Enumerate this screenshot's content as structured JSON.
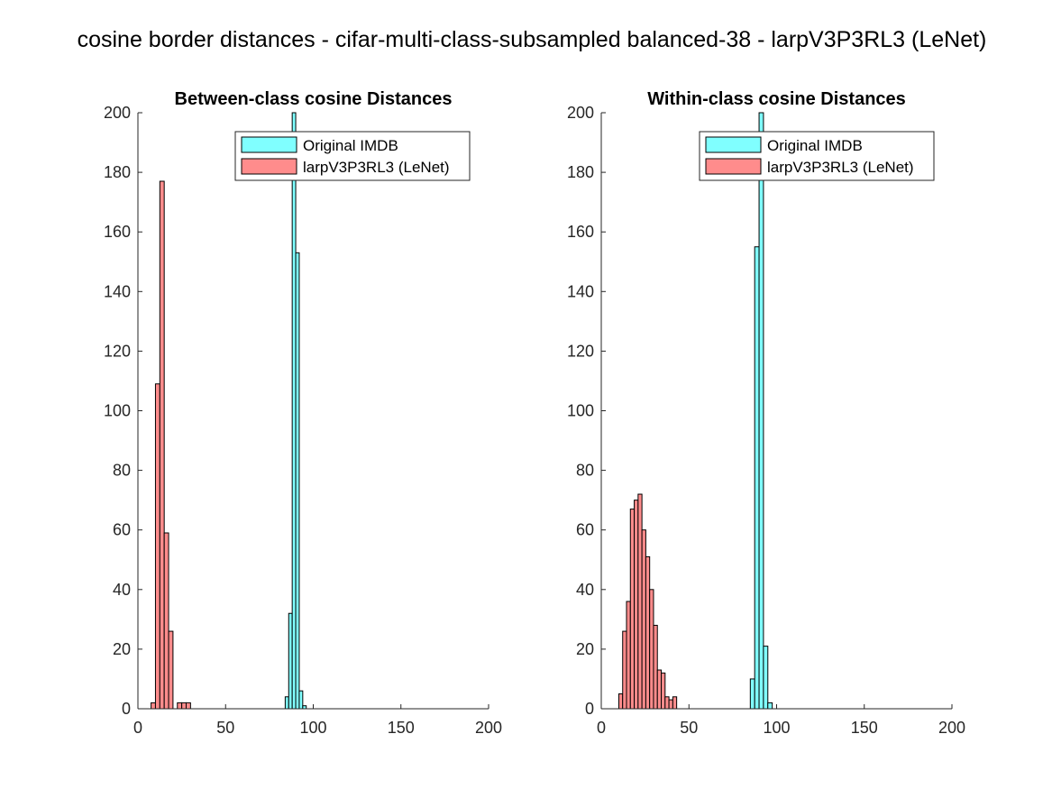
{
  "figure": {
    "suptitle": "cosine border distances - cifar-multi-class-subsampled balanced-38 - larpV3P3RL3 (LeNet)"
  },
  "colors": {
    "original": "#80ffff",
    "larp": "#ff8c8c",
    "edge": "#000000"
  },
  "chart_data": [
    {
      "type": "bar",
      "subtype": "histogram-overlay",
      "title": "Between-class cosine Distances",
      "xlabel": "",
      "ylabel": "",
      "xlim": [
        0,
        200
      ],
      "ylim": [
        0,
        200
      ],
      "xticks": [
        "0",
        "50",
        "100",
        "150",
        "200"
      ],
      "yticks": [
        "0",
        "20",
        "40",
        "60",
        "80",
        "100",
        "120",
        "140",
        "160",
        "180",
        "200"
      ],
      "legend_position": "top-right",
      "series": [
        {
          "name": "Original IMDB",
          "color": "#80ffff",
          "bin_edges": [
            84,
            86,
            88,
            90,
            92,
            94,
            96
          ],
          "counts": [
            4,
            32,
            200,
            153,
            6,
            1
          ],
          "baseline_range": [
            0,
            180
          ]
        },
        {
          "name": "larpV3P3RL3 (LeNet)",
          "color": "#ff8c8c",
          "bin_edges": [
            7.5,
            10,
            12.5,
            15,
            17.5,
            20,
            22.5,
            25,
            27.5,
            30
          ],
          "counts": [
            2,
            109,
            177,
            59,
            26,
            0,
            2,
            2,
            2
          ],
          "baseline_range": [
            0,
            30
          ]
        }
      ]
    },
    {
      "type": "bar",
      "subtype": "histogram-overlay",
      "title": "Within-class cosine Distances",
      "xlabel": "",
      "ylabel": "",
      "xlim": [
        0,
        200
      ],
      "ylim": [
        0,
        200
      ],
      "xticks": [
        "0",
        "50",
        "100",
        "150",
        "200"
      ],
      "yticks": [
        "0",
        "20",
        "40",
        "60",
        "80",
        "100",
        "120",
        "140",
        "160",
        "180",
        "200"
      ],
      "legend_position": "top-right",
      "series": [
        {
          "name": "Original IMDB",
          "color": "#80ffff",
          "bin_edges": [
            85,
            87.5,
            90,
            92.5,
            95,
            97.5
          ],
          "counts": [
            10,
            155,
            200,
            21,
            2
          ],
          "baseline_range": [
            0,
            180
          ]
        },
        {
          "name": "larpV3P3RL3 (LeNet)",
          "color": "#ff8c8c",
          "bin_edges": [
            10,
            12.2,
            14.4,
            16.6,
            18.8,
            21,
            23.2,
            25.4,
            27.6,
            29.8,
            32,
            34.2,
            36.4,
            38.6,
            40.8,
            43
          ],
          "counts": [
            5,
            26,
            36,
            67,
            70,
            72,
            60,
            51,
            40,
            28,
            13,
            12,
            4,
            3,
            4
          ],
          "baseline_range": [
            0,
            45
          ]
        }
      ]
    }
  ]
}
